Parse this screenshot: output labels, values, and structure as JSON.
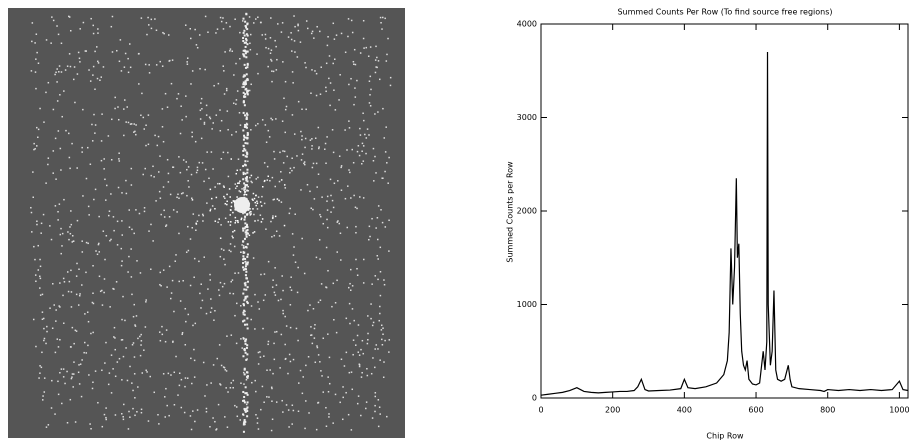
{
  "chart_data": {
    "type": "line",
    "title": "Summed Counts Per Row (To find source free regions)",
    "x_label": "Chip Row",
    "y_label": "Summed Counts per Row",
    "x": [
      0,
      20,
      40,
      60,
      80,
      100,
      120,
      140,
      160,
      180,
      200,
      220,
      240,
      260,
      270,
      280,
      290,
      300,
      330,
      360,
      390,
      400,
      410,
      430,
      460,
      490,
      510,
      520,
      525,
      530,
      535,
      540,
      545,
      548,
      552,
      556,
      560,
      565,
      570,
      575,
      580,
      590,
      600,
      610,
      620,
      625,
      630,
      632,
      634,
      640,
      645,
      650,
      655,
      660,
      670,
      680,
      690,
      695,
      700,
      720,
      750,
      780,
      790,
      800,
      830,
      860,
      890,
      920,
      950,
      980,
      1000,
      1010,
      1024
    ],
    "values": [
      30,
      40,
      50,
      60,
      80,
      110,
      70,
      60,
      55,
      60,
      65,
      70,
      70,
      80,
      120,
      200,
      90,
      75,
      80,
      85,
      100,
      200,
      110,
      100,
      120,
      160,
      250,
      400,
      700,
      1600,
      1000,
      1400,
      2350,
      1500,
      1650,
      900,
      500,
      350,
      300,
      400,
      200,
      150,
      140,
      160,
      500,
      300,
      600,
      3700,
      1000,
      350,
      500,
      1150,
      300,
      200,
      180,
      200,
      350,
      200,
      120,
      100,
      90,
      80,
      70,
      90,
      80,
      90,
      80,
      90,
      80,
      90,
      180,
      90,
      80
    ],
    "color": "#000000",
    "xlim": [
      0,
      1024
    ],
    "xticks": [
      0,
      200,
      400,
      600,
      800,
      1000
    ],
    "ylim": [
      0,
      4000
    ],
    "yticks": [
      0,
      1000,
      2000,
      3000,
      4000
    ],
    "grid": false
  }
}
